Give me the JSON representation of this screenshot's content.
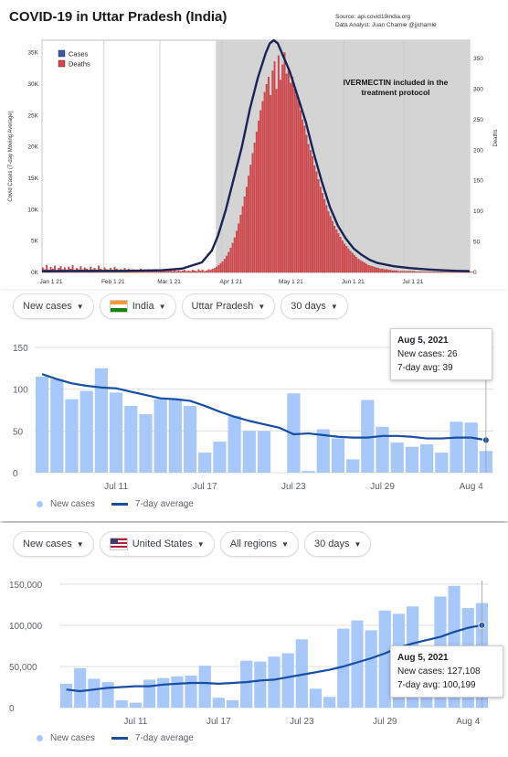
{
  "panel1": {
    "title": "COVID-19 in Uttar Pradesh (India)",
    "source_line1": "Source: api.covid19india.org",
    "source_line2": "Data Analyst:  Juan Chamie @jjchamie",
    "annotation_line1": "IVERMECTIN included in the",
    "annotation_line2": "treatment protocol",
    "colors": {
      "cases": "#3b5ba8",
      "deaths": "#d9454a",
      "line": "#1a2456",
      "shade": "#d4d4d4"
    }
  },
  "panel2": {
    "chips": {
      "metric": "New cases",
      "country": "India",
      "region": "Uttar Pradesh",
      "range": "30 days"
    },
    "tooltip": {
      "date": "Aug 5, 2021",
      "cases": "New cases: 26",
      "avg": "7-day avg: 39"
    },
    "legend": {
      "cases": "New cases",
      "avg": "7-day average"
    }
  },
  "panel3": {
    "chips": {
      "metric": "New cases",
      "country": "United States",
      "region": "All regions",
      "range": "30 days"
    },
    "tooltip": {
      "date": "Aug 5, 2021",
      "cases": "New cases: 127,108",
      "avg": "7-day avg: 100,199"
    },
    "legend": {
      "cases": "New cases",
      "avg": "7-day average"
    }
  },
  "chart_data": [
    {
      "type": "bar",
      "title": "COVID-19 in Uttar Pradesh (India)",
      "ylabel": "Covid Cases (7-day Moving Average)",
      "y2label": "Deaths",
      "ylim": [
        0,
        37000
      ],
      "y2lim": [
        0,
        380
      ],
      "yticks": [
        "0K",
        "5K",
        "10K",
        "15K",
        "20K",
        "25K",
        "30K",
        "35K"
      ],
      "y2ticks": [
        "0",
        "50",
        "100",
        "150",
        "200",
        "250",
        "300",
        "350"
      ],
      "xticks": [
        "Jan 1 21",
        "Feb 1 21",
        "Mar 1 21",
        "Apr 1 21",
        "May 1 21",
        "Jun 1 21",
        "Jul 1 21"
      ],
      "legend": [
        "Cases",
        "Deaths"
      ],
      "legend_position": "top-left",
      "shaded_from_day": 87,
      "cases_line": {
        "day": [
          0,
          20,
          40,
          60,
          70,
          80,
          85,
          88,
          92,
          96,
          100,
          104,
          108,
          112,
          114,
          116,
          118,
          120,
          124,
          128,
          132,
          136,
          140,
          144,
          148,
          152,
          156,
          160,
          164,
          168,
          176,
          184,
          192,
          200,
          208,
          214
        ],
        "value": [
          200,
          250,
          250,
          350,
          600,
          1600,
          3500,
          5800,
          10000,
          15000,
          20000,
          26000,
          31000,
          35000,
          36500,
          37000,
          36500,
          35000,
          32000,
          28000,
          24000,
          19000,
          14500,
          10500,
          7500,
          5400,
          3800,
          2800,
          2000,
          1500,
          1000,
          700,
          500,
          350,
          250,
          200
        ]
      },
      "deaths": {
        "day_start": 0,
        "values": [
          8,
          5,
          12,
          4,
          9,
          6,
          11,
          3,
          7,
          10,
          5,
          8,
          4,
          9,
          6,
          12,
          3,
          7,
          5,
          10,
          4,
          8,
          6,
          3,
          9,
          5,
          7,
          4,
          11,
          6,
          3,
          8,
          5,
          4,
          7,
          3,
          9,
          6,
          2,
          5,
          4,
          7,
          3,
          6,
          2,
          5,
          3,
          4,
          2,
          6,
          3,
          2,
          4,
          5,
          2,
          3,
          4,
          2,
          3,
          5,
          2,
          4,
          2,
          3,
          3,
          2,
          4,
          2,
          3,
          2,
          3,
          4,
          2,
          3,
          2,
          4,
          3,
          2,
          5,
          3,
          4,
          2,
          3,
          5,
          4,
          6,
          7,
          9,
          12,
          15,
          18,
          22,
          27,
          33,
          40,
          48,
          57,
          68,
          80,
          94,
          108,
          124,
          140,
          158,
          176,
          195,
          212,
          230,
          248,
          265,
          280,
          295,
          308,
          320,
          290,
          330,
          345,
          300,
          355,
          315,
          340,
          360,
          325,
          335,
          310,
          320,
          300,
          290,
          280,
          265,
          250,
          240,
          225,
          210,
          200,
          190,
          175,
          165,
          152,
          140,
          130,
          120,
          110,
          100,
          92,
          84,
          76,
          70,
          64,
          58,
          52,
          47,
          43,
          39,
          35,
          32,
          28,
          25,
          22,
          20,
          18,
          16,
          14,
          12,
          11,
          10,
          9,
          8,
          7,
          6,
          6,
          5,
          5,
          4,
          4,
          3,
          3,
          3,
          2,
          2,
          2,
          2,
          2,
          2,
          2,
          2,
          2,
          1,
          1,
          1,
          1,
          1,
          1,
          1,
          1,
          1,
          1,
          1,
          1,
          1,
          1,
          1,
          1,
          1,
          1,
          1,
          1,
          1,
          1,
          1,
          1,
          1,
          1,
          1,
          1,
          1
        ]
      }
    },
    {
      "type": "bar",
      "ylim": [
        0,
        150
      ],
      "yticks": [
        0,
        50,
        100,
        150
      ],
      "xticks": [
        "Jul 11",
        "Jul 17",
        "Jul 23",
        "Jul 29",
        "Aug 4"
      ],
      "categories": [
        "Jul 6",
        "Jul 7",
        "Jul 8",
        "Jul 9",
        "Jul 10",
        "Jul 11",
        "Jul 12",
        "Jul 13",
        "Jul 14",
        "Jul 15",
        "Jul 16",
        "Jul 17",
        "Jul 18",
        "Jul 19",
        "Jul 20",
        "Jul 21",
        "Jul 22",
        "Jul 23",
        "Jul 24",
        "Jul 25",
        "Jul 26",
        "Jul 27",
        "Jul 28",
        "Jul 29",
        "Jul 30",
        "Jul 31",
        "Aug 1",
        "Aug 2",
        "Aug 3",
        "Aug 4",
        "Aug 5"
      ],
      "series": [
        {
          "name": "New cases",
          "values": [
            115,
            112,
            88,
            98,
            125,
            96,
            80,
            70,
            88,
            88,
            80,
            24,
            37,
            68,
            50,
            50,
            0,
            95,
            2,
            52,
            41,
            16,
            87,
            55,
            36,
            31,
            34,
            24,
            61,
            60,
            26
          ]
        },
        {
          "name": "7-day average",
          "values": [
            118,
            112,
            107,
            104,
            102,
            101,
            97,
            93,
            89,
            88,
            86,
            80,
            73,
            67,
            62,
            58,
            54,
            46,
            47,
            45,
            43,
            42,
            42,
            44,
            44,
            43,
            41,
            41,
            42,
            42,
            39
          ]
        }
      ],
      "legend_position": "bottom-left"
    },
    {
      "type": "bar",
      "ylim": [
        0,
        150000
      ],
      "yticks": [
        "0",
        "50,000",
        "100,000",
        "150,000"
      ],
      "xticks": [
        "Jul 11",
        "Jul 17",
        "Jul 23",
        "Jul 29",
        "Aug 4"
      ],
      "categories": [
        "Jul 6",
        "Jul 7",
        "Jul 8",
        "Jul 9",
        "Jul 10",
        "Jul 11",
        "Jul 12",
        "Jul 13",
        "Jul 14",
        "Jul 15",
        "Jul 16",
        "Jul 17",
        "Jul 18",
        "Jul 19",
        "Jul 20",
        "Jul 21",
        "Jul 22",
        "Jul 23",
        "Jul 24",
        "Jul 25",
        "Jul 26",
        "Jul 27",
        "Jul 28",
        "Jul 29",
        "Jul 30",
        "Jul 31",
        "Aug 1",
        "Aug 2",
        "Aug 3",
        "Aug 4",
        "Aug 5"
      ],
      "series": [
        {
          "name": "New cases",
          "values": [
            29000,
            48000,
            35000,
            31000,
            9000,
            6000,
            34000,
            36000,
            38000,
            39000,
            51000,
            12000,
            9000,
            57000,
            56000,
            62000,
            66000,
            83000,
            23000,
            13000,
            96000,
            106000,
            94000,
            118000,
            114000,
            123000,
            29000,
            135000,
            148000,
            121000,
            127108
          ]
        },
        {
          "name": "7-day average",
          "values": [
            22000,
            20000,
            22000,
            24000,
            25000,
            26000,
            26000,
            28000,
            29000,
            30000,
            30000,
            29000,
            30000,
            31000,
            33000,
            34000,
            37000,
            40000,
            43000,
            46000,
            50000,
            55000,
            60000,
            66000,
            73000,
            78000,
            82000,
            86000,
            92000,
            97000,
            100199
          ]
        }
      ],
      "legend_position": "bottom-left"
    }
  ]
}
